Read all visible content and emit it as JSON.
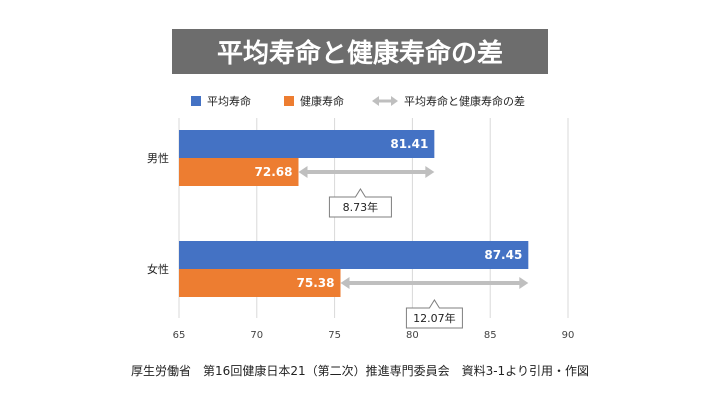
{
  "chart_data": {
    "type": "bar",
    "title": "平均寿命と健康寿命の差",
    "categories": [
      "男性",
      "女性"
    ],
    "series": [
      {
        "name": "平均寿命",
        "color": "#4472c4",
        "values": [
          81.41,
          87.45
        ],
        "labels": [
          "81.41",
          "87.45"
        ]
      },
      {
        "name": "健康寿命",
        "color": "#ed7d31",
        "values": [
          72.68,
          75.38
        ],
        "labels": [
          "72.68",
          "75.38"
        ]
      }
    ],
    "difference": {
      "name": "平均寿命と健康寿命の差",
      "color": "#bfbfbf",
      "labels": [
        "8.73年",
        "12.07年"
      ]
    },
    "xlim": [
      65,
      90
    ],
    "xticks": [
      "65",
      "70",
      "75",
      "80",
      "85",
      "90"
    ],
    "grid": true,
    "legend": "top"
  },
  "source": "厚生労働省　第16回健康日本21（第二次）推進専門委員会　資料3-1より引用・作図"
}
